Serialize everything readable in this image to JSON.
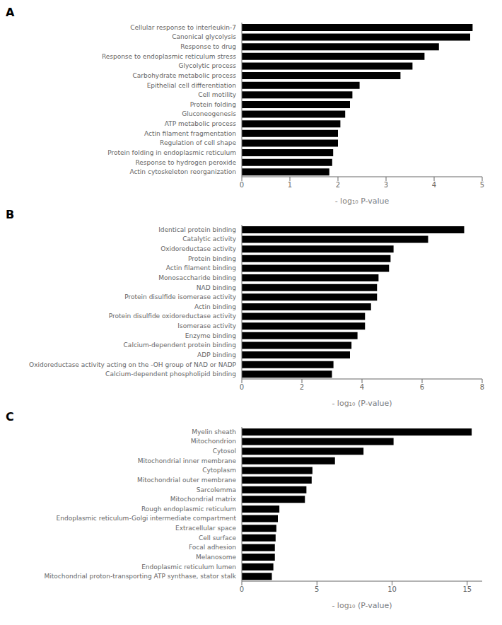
{
  "chart_data": [
    {
      "type": "bar",
      "orientation": "horizontal",
      "title": "A",
      "color": "#000000",
      "categories": [
        "Cellular response to interleukin-7",
        "Canonical glycolysis",
        "Response to drug",
        "Response to endoplasmic reticulum stress",
        "Glycolytic process",
        "Carbohydrate metabolic process",
        "Epithelial cell differentiation",
        "Cell motility",
        "Protein folding",
        "Gluconeogenesis",
        "ATP metabolic process",
        "Actin filament fragmentation",
        "Regulation of cell shape",
        "Protein folding in endoplasmic reticulum",
        "Response to hydrogen peroxide",
        "Actin cytoskeleton reorganization"
      ],
      "values": [
        4.8,
        4.75,
        4.1,
        3.8,
        3.55,
        3.3,
        2.45,
        2.3,
        2.25,
        2.15,
        2.05,
        2.0,
        2.0,
        1.9,
        1.88,
        1.82
      ],
      "xlabel": "- log₁₀ P-value",
      "xlim": [
        0,
        5
      ],
      "xticks": [
        0,
        1,
        2,
        3,
        4,
        5
      ]
    },
    {
      "type": "bar",
      "orientation": "horizontal",
      "title": "B",
      "color": "#000000",
      "categories": [
        "Identical protein binding",
        "Catalytic activity",
        "Oxidoreductase activity",
        "Protein binding",
        "Actin filament binding",
        "Monosaccharide binding",
        "NAD binding",
        "Protein disulfide isomerase activity",
        "Actin binding",
        "Protein disulfide oxidoreductase activity",
        "Isomerase activity",
        "Enzyme binding",
        "Calcium-dependent protein binding",
        "ADP binding",
        "Oxidoreductase activity acting on the -OH group of NAD or NADP",
        "Calcium-dependent phospholipid binding"
      ],
      "values": [
        7.4,
        6.2,
        5.05,
        4.95,
        4.9,
        4.55,
        4.5,
        4.5,
        4.3,
        4.1,
        4.1,
        3.85,
        3.65,
        3.6,
        3.05,
        3.0
      ],
      "xlabel": "- log₁₀ (P-value)",
      "xlim": [
        0,
        8
      ],
      "xticks": [
        0,
        2,
        4,
        6,
        8
      ]
    },
    {
      "type": "bar",
      "orientation": "horizontal",
      "title": "C",
      "color": "#000000",
      "categories": [
        "Myelin sheath",
        "Mitochondrion",
        "Cytosol",
        "Mitochondrial inner membrane",
        "Cytoplasm",
        "Mitochondrial outer membrane",
        "Sarcolemma",
        "Mitochondrial matrix",
        "Rough endoplasmic reticulum",
        "Endoplasmic reticulum-Golgi intermediate compartment",
        "Extracellular space",
        "Cell surface",
        "Focal adhesion",
        "Melanosome",
        "Endoplasmic reticulum lumen",
        "Mitochondrial proton-transporting ATP synthase, stator stalk"
      ],
      "values": [
        15.3,
        10.1,
        8.1,
        6.2,
        4.7,
        4.65,
        4.3,
        4.2,
        2.5,
        2.4,
        2.3,
        2.25,
        2.2,
        2.2,
        2.1,
        2.0
      ],
      "xlabel": "- log₁₀ (P-value)",
      "xlim": [
        0,
        16
      ],
      "xticks": [
        0,
        5,
        10,
        15
      ]
    }
  ]
}
